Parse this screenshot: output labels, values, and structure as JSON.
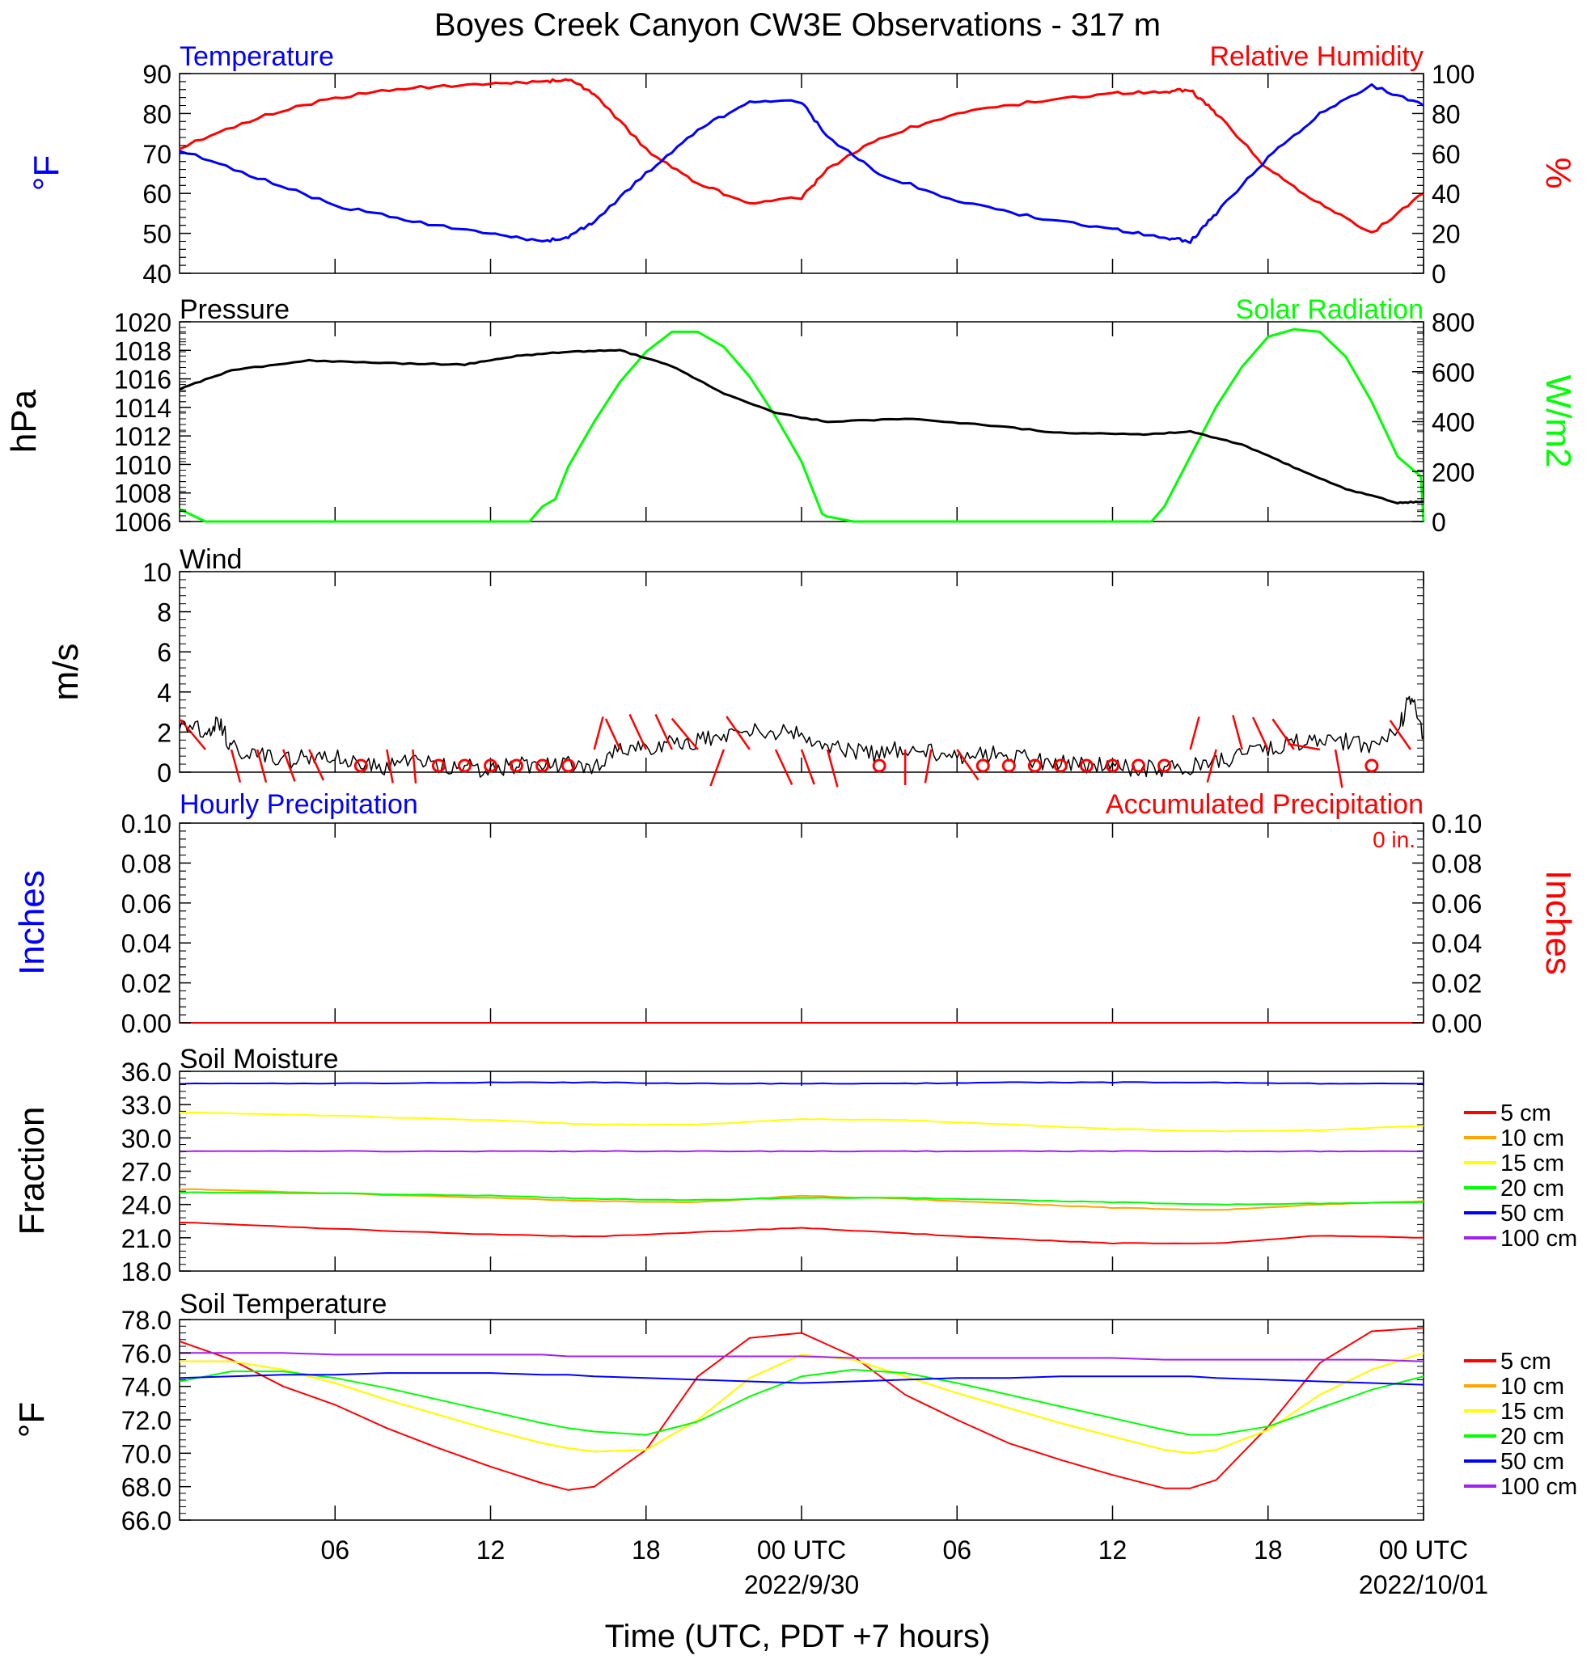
{
  "figure": {
    "title": "Boyes Creek Canyon CW3E Observations - 317 m",
    "x_tick_labels": [
      "06",
      "12",
      "18",
      "00 UTC",
      "06",
      "12",
      "18",
      "00 UTC"
    ],
    "x_date_labels": [
      "2022/9/30",
      "2022/10/01"
    ],
    "xlabel": "Time (UTC, PDT +7 hours)"
  },
  "colors": {
    "temperature": "#0000ff",
    "humidity": "#ff0000",
    "pressure": "#000000",
    "solar": "#00ff00",
    "wind": "#000000",
    "barbs": "#ff0000",
    "soil": {
      "5 cm": "#ff0000",
      "10 cm": "#ffa500",
      "15 cm": "#ffff00",
      "20 cm": "#00ff00",
      "50 cm": "#0000ff",
      "100 cm": "#a020f0"
    }
  },
  "chart_data": [
    {
      "type": "line",
      "panel": "temperature_humidity",
      "title_left": "Temperature",
      "title_right": "Relative Humidity",
      "ylabel_left": "°F",
      "ylabel_right": "%",
      "ylim_left": [
        40,
        90
      ],
      "yticks_left": [
        "90",
        "80",
        "70",
        "60",
        "50",
        "40"
      ],
      "ylim_right": [
        0,
        100
      ],
      "yticks_right": [
        "100",
        "80",
        "60",
        "40",
        "20",
        "0"
      ],
      "x_hours": [
        0,
        3,
        6,
        9,
        12,
        14,
        15,
        16,
        18,
        20,
        22,
        24,
        25,
        27,
        30,
        33,
        36,
        38,
        39,
        40,
        42,
        44,
        46,
        48
      ],
      "series": [
        {
          "name": "Temperature",
          "axis": "left",
          "values": [
            71,
            64,
            57,
            53,
            50,
            48,
            49,
            53,
            65,
            76,
            83,
            83,
            74,
            65,
            58,
            54,
            51,
            49,
            48,
            55,
            69,
            80,
            87,
            82
          ]
        },
        {
          "name": "Relative Humidity",
          "axis": "right",
          "values": [
            63,
            78,
            88,
            93,
            95,
            96,
            97,
            90,
            62,
            45,
            35,
            38,
            52,
            68,
            80,
            86,
            90,
            91,
            92,
            80,
            52,
            35,
            20,
            40
          ]
        }
      ]
    },
    {
      "type": "line",
      "panel": "pressure_solar",
      "title_left": "Pressure",
      "title_right": "Solar Radiation",
      "ylabel_left": "hPa",
      "ylabel_right": "W/m2",
      "ylim_left": [
        1006,
        1020
      ],
      "yticks_left": [
        "1020",
        "1018",
        "1016",
        "1014",
        "1012",
        "1010",
        "1008",
        "1006"
      ],
      "ylim_right": [
        0,
        800
      ],
      "yticks_right": [
        "800",
        "600",
        "400",
        "200",
        "0"
      ],
      "series": [
        {
          "name": "Pressure",
          "axis": "left",
          "x_hours": [
            0,
            2,
            5,
            8,
            11,
            13,
            15,
            17,
            19,
            21,
            23,
            25,
            28,
            31,
            34,
            37,
            39,
            41,
            43,
            45,
            47,
            48
          ],
          "values": [
            1015.3,
            1016.6,
            1017.3,
            1017.1,
            1017.0,
            1017.6,
            1017.9,
            1018.0,
            1016.9,
            1015.0,
            1013.6,
            1013.0,
            1013.2,
            1012.8,
            1012.2,
            1012.1,
            1012.3,
            1011.4,
            1009.8,
            1008.3,
            1007.3,
            1007.4
          ]
        },
        {
          "name": "Solar Radiation",
          "axis": "right",
          "x_hours": [
            0,
            1,
            13.5,
            14,
            14.5,
            15,
            16,
            17,
            18,
            19,
            20,
            21,
            22,
            23,
            24,
            24.8,
            25,
            26,
            37.5,
            38,
            39,
            40,
            41,
            42,
            43,
            44,
            45,
            46,
            47,
            47.9,
            48
          ],
          "values": [
            50,
            0,
            0,
            60,
            90,
            220,
            400,
            560,
            680,
            760,
            760,
            700,
            580,
            420,
            240,
            30,
            20,
            0,
            0,
            60,
            260,
            460,
            620,
            740,
            770,
            760,
            660,
            480,
            260,
            180,
            0
          ]
        }
      ]
    },
    {
      "type": "line",
      "panel": "wind",
      "title_left": "Wind",
      "ylabel_left": "m/s",
      "ylim_left": [
        0,
        10
      ],
      "yticks_left": [
        "10",
        "8",
        "6",
        "4",
        "2",
        "0"
      ],
      "x_hours": [
        0,
        1,
        1.5,
        2,
        3,
        4,
        5,
        6,
        7,
        8,
        9,
        10,
        11,
        12,
        13,
        14,
        15,
        16,
        17,
        18,
        19,
        20,
        21,
        22,
        23,
        24,
        25,
        26,
        27,
        28,
        29,
        30,
        31,
        32,
        33,
        34,
        35,
        36,
        37,
        38,
        39,
        40,
        41,
        42,
        43,
        44,
        45,
        46,
        47,
        47.5,
        48
      ],
      "series": [
        {
          "name": "Wind speed",
          "values": [
            2.6,
            2.0,
            2.6,
            1.2,
            0.8,
            0.6,
            0.7,
            0.7,
            0.4,
            0.3,
            0.5,
            0.4,
            0.2,
            0.2,
            0.3,
            0.5,
            0.4,
            0.3,
            1.2,
            1.3,
            1.4,
            1.6,
            1.8,
            2.2,
            2.0,
            1.9,
            1.2,
            1.0,
            0.9,
            1.2,
            1.0,
            0.8,
            0.9,
            0.9,
            0.6,
            0.4,
            0.4,
            0.3,
            0.2,
            0.2,
            0.3,
            0.5,
            0.8,
            1.2,
            1.5,
            1.6,
            1.5,
            1.3,
            2.0,
            3.8,
            1.8
          ]
        }
      ],
      "calm_hours": [
        7,
        10,
        11,
        12,
        13,
        14,
        15,
        27,
        31,
        32,
        33,
        34,
        35,
        36,
        37,
        38,
        46
      ],
      "barbs": [
        {
          "hour": 1,
          "angle": -40,
          "len": 48
        },
        {
          "hour": 2,
          "angle": 165,
          "len": 42
        },
        {
          "hour": 3,
          "angle": 165,
          "len": 42
        },
        {
          "hour": 4,
          "angle": 160,
          "len": 42
        },
        {
          "hour": 5,
          "angle": 155,
          "len": 42
        },
        {
          "hour": 8,
          "angle": 170,
          "len": 42
        },
        {
          "hour": 9,
          "angle": 175,
          "len": 42
        },
        {
          "hour": 16,
          "angle": 15,
          "len": 42
        },
        {
          "hour": 17,
          "angle": -25,
          "len": 42
        },
        {
          "hour": 18,
          "angle": -25,
          "len": 48
        },
        {
          "hour": 19,
          "angle": -25,
          "len": 48
        },
        {
          "hour": 20,
          "angle": -40,
          "len": 50
        },
        {
          "hour": 21,
          "angle": 200,
          "len": 48
        },
        {
          "hour": 22,
          "angle": -35,
          "len": 50
        },
        {
          "hour": 23,
          "angle": 155,
          "len": 48
        },
        {
          "hour": 24,
          "angle": 160,
          "len": 46
        },
        {
          "hour": 25,
          "angle": 165,
          "len": 48
        },
        {
          "hour": 28,
          "angle": 180,
          "len": 44
        },
        {
          "hour": 29,
          "angle": 190,
          "len": 42
        },
        {
          "hour": 30,
          "angle": 145,
          "len": 46
        },
        {
          "hour": 39,
          "angle": 15,
          "len": 42
        },
        {
          "hour": 40,
          "angle": 195,
          "len": 42
        },
        {
          "hour": 41,
          "angle": -15,
          "len": 44
        },
        {
          "hour": 42,
          "angle": -25,
          "len": 44
        },
        {
          "hour": 43,
          "angle": -35,
          "len": 46
        },
        {
          "hour": 44,
          "angle": -80,
          "len": 40
        },
        {
          "hour": 44.6,
          "angle": 170,
          "len": 48
        },
        {
          "hour": 47.5,
          "angle": -35,
          "len": 44
        }
      ]
    },
    {
      "type": "line",
      "panel": "precipitation",
      "title_left": "Hourly Precipitation",
      "title_right": "Accumulated Precipitation",
      "annotation": "0 in.",
      "ylabel_left": "Inches",
      "ylabel_right": "Inches",
      "ylim_left": [
        0,
        0.1
      ],
      "yticks_left": [
        "0.10",
        "0.08",
        "0.06",
        "0.04",
        "0.02",
        "0.00"
      ],
      "ylim_right": [
        0,
        0.1
      ],
      "yticks_right": [
        "0.10",
        "0.08",
        "0.06",
        "0.04",
        "0.02",
        "0.00"
      ],
      "x_hours": [
        0,
        48
      ],
      "series": [
        {
          "name": "Hourly Precipitation",
          "values": [
            0,
            0
          ]
        },
        {
          "name": "Accumulated Precipitation",
          "values": [
            0,
            0
          ]
        }
      ]
    },
    {
      "type": "line",
      "panel": "soil_moisture",
      "title_left": "Soil Moisture",
      "ylabel_left": "Fraction",
      "ylim_left": [
        18,
        36
      ],
      "yticks_left": [
        "36.0",
        "33.0",
        "30.0",
        "27.0",
        "24.0",
        "21.0",
        "18.0"
      ],
      "legend": [
        "5 cm",
        "10 cm",
        "15 cm",
        "20 cm",
        "50 cm",
        "100 cm"
      ],
      "x_hours": [
        0,
        6,
        12,
        16,
        20,
        24,
        28,
        32,
        36,
        40,
        44,
        48
      ],
      "series": [
        {
          "name": "5 cm",
          "values": [
            22.4,
            21.8,
            21.3,
            21.1,
            21.5,
            21.9,
            21.4,
            20.9,
            20.5,
            20.5,
            21.2,
            21.0
          ]
        },
        {
          "name": "10 cm",
          "values": [
            25.4,
            25.0,
            24.6,
            24.3,
            24.2,
            24.8,
            24.5,
            24.1,
            23.7,
            23.5,
            24.0,
            24.3
          ]
        },
        {
          "name": "15 cm",
          "values": [
            32.3,
            32.0,
            31.6,
            31.2,
            31.2,
            31.7,
            31.6,
            31.2,
            30.8,
            30.6,
            30.7,
            31.1
          ]
        },
        {
          "name": "20 cm",
          "values": [
            25.1,
            25.0,
            24.8,
            24.5,
            24.4,
            24.6,
            24.6,
            24.4,
            24.2,
            24.0,
            24.1,
            24.2
          ]
        },
        {
          "name": "50 cm",
          "values": [
            34.9,
            34.9,
            35.0,
            35.0,
            34.9,
            34.9,
            34.9,
            35.0,
            35.0,
            35.0,
            34.9,
            34.9
          ]
        },
        {
          "name": "100 cm",
          "values": [
            28.8,
            28.8,
            28.8,
            28.8,
            28.8,
            28.8,
            28.8,
            28.8,
            28.8,
            28.8,
            28.8,
            28.8
          ]
        }
      ]
    },
    {
      "type": "line",
      "panel": "soil_temperature",
      "title_left": "Soil Temperature",
      "ylabel_left": "°F",
      "ylim_left": [
        66,
        78
      ],
      "yticks_left": [
        "78.0",
        "76.0",
        "74.0",
        "72.0",
        "70.0",
        "68.0",
        "66.0"
      ],
      "legend": [
        "5 cm",
        "10 cm",
        "15 cm",
        "20 cm",
        "50 cm",
        "100 cm"
      ],
      "x_hours": [
        0,
        2,
        4,
        6,
        8,
        10,
        12,
        14,
        15,
        16,
        18,
        20,
        22,
        24,
        26,
        28,
        30,
        32,
        34,
        36,
        38,
        39,
        40,
        42,
        44,
        46,
        48
      ],
      "series": [
        {
          "name": "5 cm",
          "values": [
            76.7,
            75.6,
            74.0,
            72.9,
            71.5,
            70.3,
            69.2,
            68.2,
            67.8,
            68.0,
            70.2,
            74.6,
            76.9,
            77.2,
            75.8,
            73.5,
            72.0,
            70.6,
            69.6,
            68.7,
            67.9,
            67.9,
            68.4,
            71.6,
            75.4,
            77.3,
            77.5
          ]
        },
        {
          "name": "10 cm",
          "values": [
            75.5,
            75.5,
            75.0,
            74.2,
            73.2,
            72.3,
            71.4,
            70.6,
            70.3,
            70.1,
            70.2,
            72.0,
            74.5,
            75.9,
            75.6,
            74.6,
            73.6,
            72.7,
            71.8,
            71.0,
            70.2,
            70.0,
            70.2,
            71.4,
            73.5,
            75.0,
            76.0
          ]
        },
        {
          "name": "15 cm",
          "values": [
            75.5,
            75.5,
            75.0,
            74.2,
            73.2,
            72.3,
            71.4,
            70.6,
            70.3,
            70.1,
            70.2,
            72.0,
            74.5,
            75.9,
            75.6,
            74.6,
            73.6,
            72.7,
            71.8,
            71.0,
            70.2,
            70.0,
            70.2,
            71.4,
            73.5,
            75.0,
            76.0
          ]
        },
        {
          "name": "20 cm",
          "values": [
            74.3,
            74.9,
            74.9,
            74.5,
            73.9,
            73.2,
            72.5,
            71.8,
            71.5,
            71.3,
            71.1,
            71.9,
            73.4,
            74.6,
            75.0,
            74.8,
            74.2,
            73.5,
            72.8,
            72.1,
            71.4,
            71.1,
            71.1,
            71.6,
            72.7,
            73.8,
            74.6
          ]
        },
        {
          "name": "50 cm",
          "values": [
            74.5,
            74.6,
            74.7,
            74.7,
            74.8,
            74.8,
            74.8,
            74.7,
            74.7,
            74.6,
            74.5,
            74.4,
            74.3,
            74.2,
            74.3,
            74.4,
            74.5,
            74.5,
            74.6,
            74.6,
            74.6,
            74.6,
            74.5,
            74.4,
            74.3,
            74.2,
            74.1
          ]
        },
        {
          "name": "100 cm",
          "values": [
            76.0,
            76.0,
            76.0,
            75.9,
            75.9,
            75.9,
            75.9,
            75.9,
            75.8,
            75.8,
            75.8,
            75.8,
            75.8,
            75.8,
            75.7,
            75.7,
            75.7,
            75.7,
            75.7,
            75.7,
            75.6,
            75.6,
            75.6,
            75.6,
            75.6,
            75.6,
            75.5
          ]
        }
      ]
    }
  ]
}
